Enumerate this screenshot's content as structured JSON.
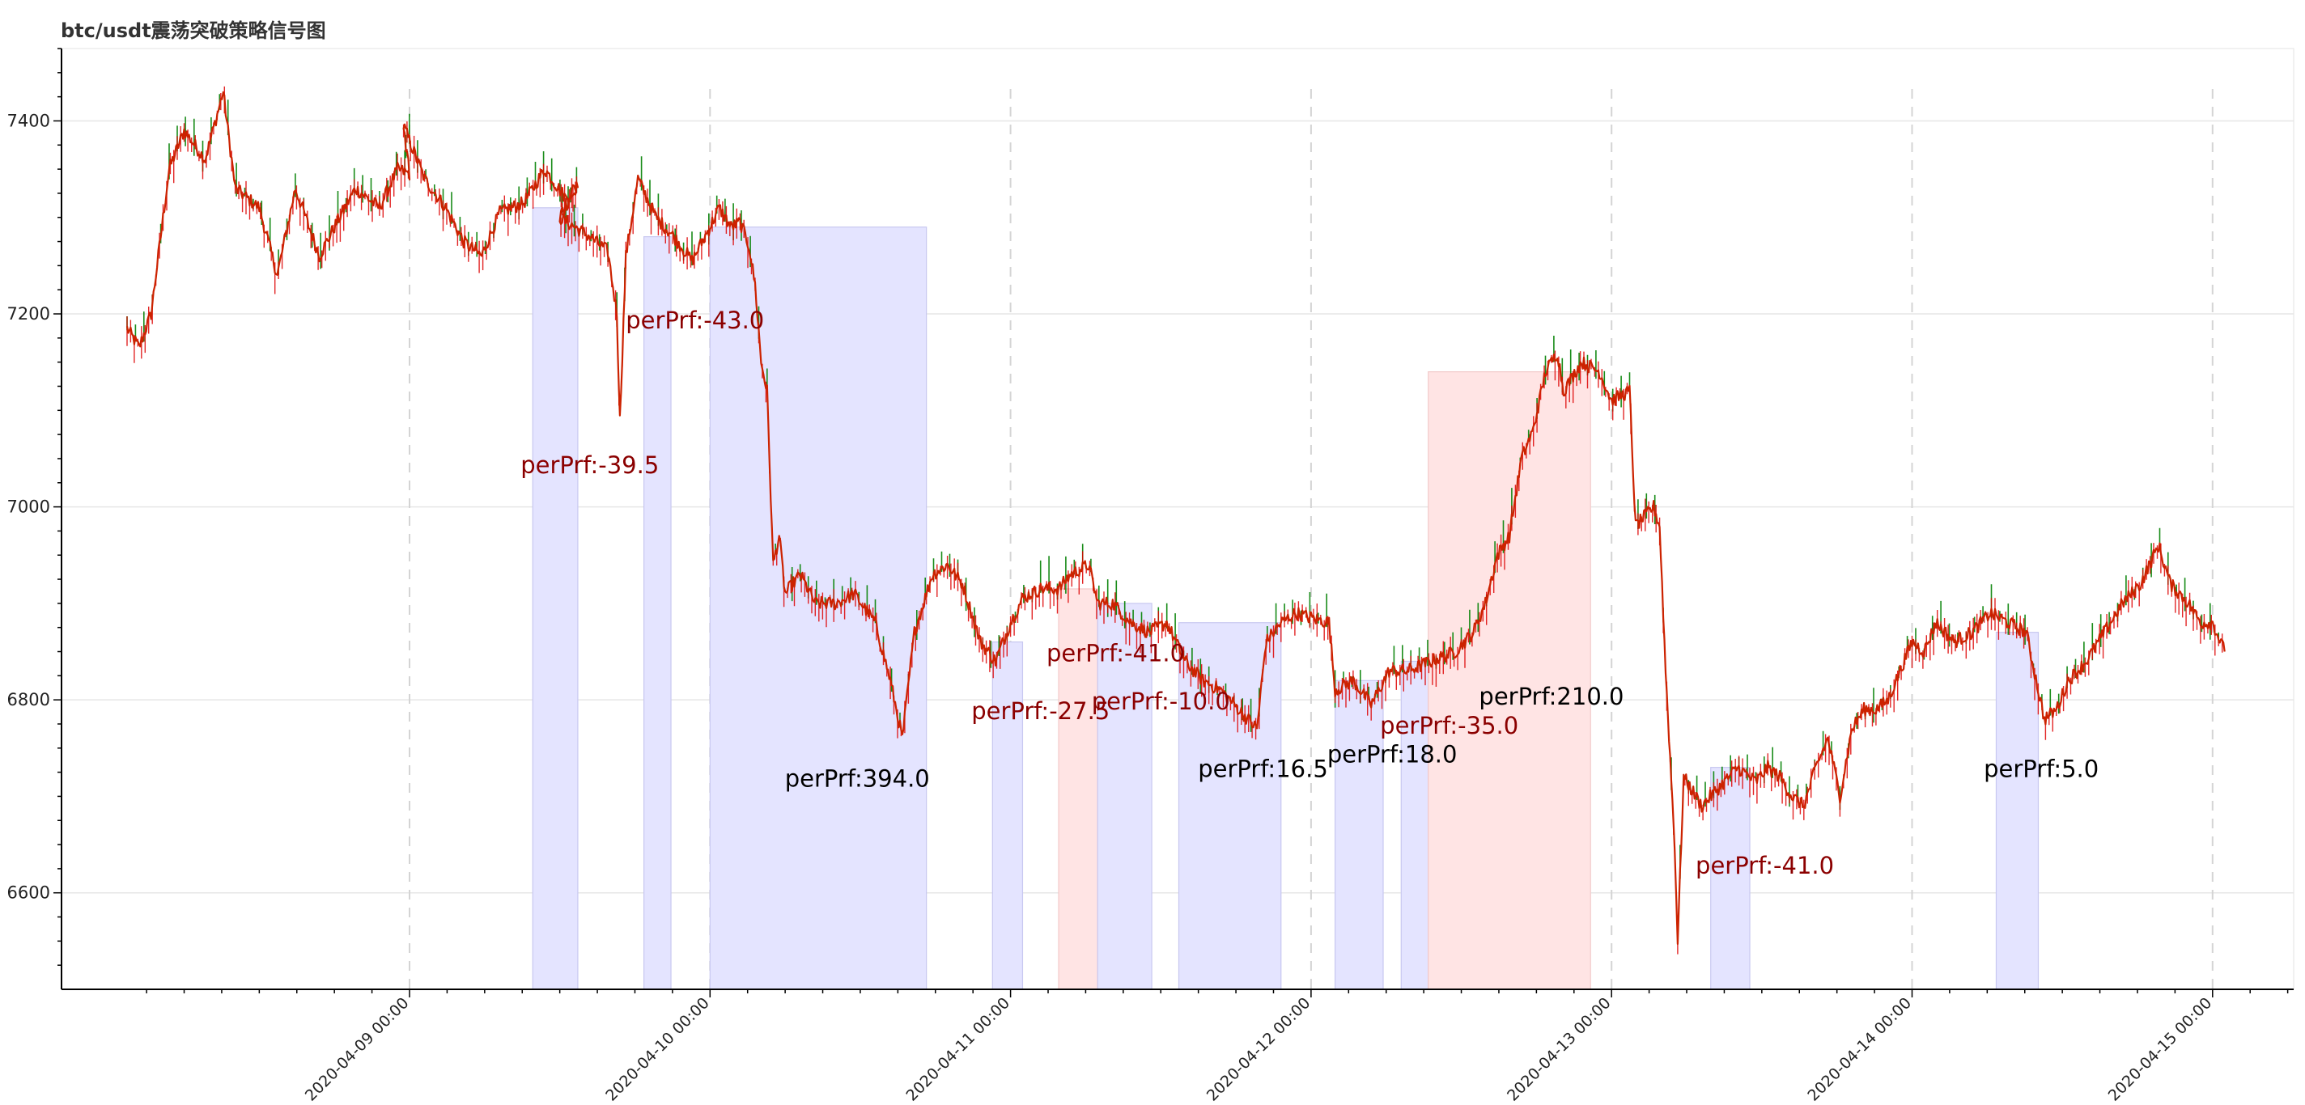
{
  "chart_data": {
    "type": "candlestick",
    "title": "btc/usdt震荡突破策略信号图",
    "ylim": [
      6500,
      7475
    ],
    "y_ticks": [
      6600,
      6800,
      7000,
      7200,
      7400
    ],
    "y_tick_labels": [
      "6600",
      "6800",
      "7000",
      "7200",
      "7400"
    ],
    "x_range_days": [
      -0.85,
      6.26
    ],
    "x_ticks": [
      0,
      1,
      2,
      3,
      4,
      5,
      6
    ],
    "x_tick_labels": [
      "2020-04-09 00:00",
      "2020-04-10 00:00",
      "2020-04-11 00:00",
      "2020-04-12 00:00",
      "2020-04-13 00:00",
      "2020-04-14 00:00",
      "2020-04-15 00:00"
    ],
    "price_keypoints": [
      [
        -0.94,
        7185
      ],
      [
        -0.9,
        7165
      ],
      [
        -0.86,
        7200
      ],
      [
        -0.8,
        7350
      ],
      [
        -0.75,
        7390
      ],
      [
        -0.68,
        7360
      ],
      [
        -0.62,
        7430
      ],
      [
        -0.58,
        7330
      ],
      [
        -0.5,
        7310
      ],
      [
        -0.44,
        7240
      ],
      [
        -0.38,
        7330
      ],
      [
        -0.3,
        7260
      ],
      [
        -0.25,
        7290
      ],
      [
        -0.18,
        7330
      ],
      [
        -0.1,
        7310
      ],
      [
        -0.04,
        7350
      ],
      [
        0.0,
        7345
      ],
      [
        -0.02,
        7395
      ],
      [
        0.05,
        7340
      ],
      [
        0.12,
        7310
      ],
      [
        0.18,
        7275
      ],
      [
        0.24,
        7260
      ],
      [
        0.3,
        7305
      ],
      [
        0.38,
        7315
      ],
      [
        0.45,
        7350
      ],
      [
        0.52,
        7320
      ],
      [
        0.56,
        7335
      ],
      [
        0.5,
        7300
      ],
      [
        0.6,
        7280
      ],
      [
        0.66,
        7265
      ],
      [
        0.69,
        7200
      ],
      [
        0.7,
        7090
      ],
      [
        0.72,
        7260
      ],
      [
        0.76,
        7340
      ],
      [
        0.82,
        7300
      ],
      [
        0.88,
        7280
      ],
      [
        0.94,
        7255
      ],
      [
        1.0,
        7290
      ],
      [
        1.03,
        7310
      ],
      [
        1.07,
        7290
      ],
      [
        1.1,
        7295
      ],
      [
        1.13,
        7270
      ],
      [
        1.15,
        7230
      ],
      [
        1.17,
        7150
      ],
      [
        1.19,
        7120
      ],
      [
        1.21,
        6940
      ],
      [
        1.23,
        6970
      ],
      [
        1.25,
        6910
      ],
      [
        1.3,
        6930
      ],
      [
        1.35,
        6900
      ],
      [
        1.42,
        6900
      ],
      [
        1.48,
        6910
      ],
      [
        1.55,
        6880
      ],
      [
        1.6,
        6820
      ],
      [
        1.64,
        6760
      ],
      [
        1.68,
        6870
      ],
      [
        1.74,
        6930
      ],
      [
        1.79,
        6940
      ],
      [
        1.84,
        6920
      ],
      [
        1.9,
        6860
      ],
      [
        1.95,
        6840
      ],
      [
        2.0,
        6880
      ],
      [
        2.04,
        6905
      ],
      [
        2.1,
        6915
      ],
      [
        2.16,
        6915
      ],
      [
        2.2,
        6930
      ],
      [
        2.26,
        6940
      ],
      [
        2.29,
        6900
      ],
      [
        2.34,
        6900
      ],
      [
        2.4,
        6880
      ],
      [
        2.46,
        6870
      ],
      [
        2.52,
        6880
      ],
      [
        2.58,
        6840
      ],
      [
        2.64,
        6820
      ],
      [
        2.7,
        6810
      ],
      [
        2.76,
        6790
      ],
      [
        2.82,
        6770
      ],
      [
        2.85,
        6860
      ],
      [
        2.9,
        6880
      ],
      [
        2.95,
        6890
      ],
      [
        3.0,
        6885
      ],
      [
        3.06,
        6880
      ],
      [
        3.08,
        6810
      ],
      [
        3.14,
        6820
      ],
      [
        3.2,
        6795
      ],
      [
        3.26,
        6830
      ],
      [
        3.32,
        6830
      ],
      [
        3.4,
        6840
      ],
      [
        3.48,
        6850
      ],
      [
        3.54,
        6870
      ],
      [
        3.58,
        6900
      ],
      [
        3.62,
        6950
      ],
      [
        3.66,
        6970
      ],
      [
        3.7,
        7050
      ],
      [
        3.74,
        7080
      ],
      [
        3.78,
        7140
      ],
      [
        3.82,
        7160
      ],
      [
        3.84,
        7120
      ],
      [
        3.9,
        7150
      ],
      [
        3.96,
        7140
      ],
      [
        4.0,
        7110
      ],
      [
        4.06,
        7120
      ],
      [
        4.08,
        6980
      ],
      [
        4.14,
        7000
      ],
      [
        4.16,
        6980
      ],
      [
        4.18,
        6830
      ],
      [
        4.21,
        6650
      ],
      [
        4.22,
        6550
      ],
      [
        4.24,
        6720
      ],
      [
        4.3,
        6690
      ],
      [
        4.36,
        6710
      ],
      [
        4.42,
        6730
      ],
      [
        4.48,
        6715
      ],
      [
        4.52,
        6730
      ],
      [
        4.56,
        6720
      ],
      [
        4.6,
        6700
      ],
      [
        4.64,
        6690
      ],
      [
        4.68,
        6730
      ],
      [
        4.72,
        6760
      ],
      [
        4.76,
        6700
      ],
      [
        4.8,
        6770
      ],
      [
        4.84,
        6790
      ],
      [
        4.88,
        6790
      ],
      [
        4.92,
        6800
      ],
      [
        4.96,
        6830
      ],
      [
        5.0,
        6860
      ],
      [
        5.04,
        6850
      ],
      [
        5.08,
        6880
      ],
      [
        5.14,
        6860
      ],
      [
        5.2,
        6870
      ],
      [
        5.26,
        6890
      ],
      [
        5.32,
        6880
      ],
      [
        5.38,
        6870
      ],
      [
        5.44,
        6780
      ],
      [
        5.48,
        6790
      ],
      [
        5.52,
        6820
      ],
      [
        5.58,
        6840
      ],
      [
        5.64,
        6870
      ],
      [
        5.7,
        6900
      ],
      [
        5.76,
        6920
      ],
      [
        5.82,
        6960
      ],
      [
        5.86,
        6920
      ],
      [
        5.92,
        6900
      ],
      [
        5.96,
        6880
      ],
      [
        6.0,
        6880
      ],
      [
        6.04,
        6850
      ]
    ],
    "trades": [
      {
        "x0": 0.41,
        "x1": 0.56,
        "color": "blue",
        "y_top": 7310,
        "label": "perPrf:-39.5",
        "label_color": "#8b0000",
        "label_x": 0.6,
        "label_y": 7035
      },
      {
        "x0": 0.78,
        "x1": 0.87,
        "color": "blue",
        "y_top": 7280,
        "label": "perPrf:-43.0",
        "label_color": "#8b0000",
        "label_x": 0.95,
        "label_y": 7185
      },
      {
        "x0": 1.0,
        "x1": 1.72,
        "color": "blue",
        "y_top": 7290,
        "label": "perPrf:394.0",
        "label_color": "#000000",
        "label_x": 1.49,
        "label_y": 6710
      },
      {
        "x0": 1.94,
        "x1": 2.04,
        "color": "blue",
        "y_top": 6860,
        "label": "perPrf:-27.5",
        "label_color": "#8b0000",
        "label_x": 2.1,
        "label_y": 6780
      },
      {
        "x0": 2.16,
        "x1": 2.29,
        "color": "red",
        "y_top": 6915,
        "label": "perPrf:-41.0",
        "label_color": "#8b0000",
        "label_x": 2.35,
        "label_y": 6840
      },
      {
        "x0": 2.29,
        "x1": 2.47,
        "color": "blue",
        "y_top": 6900,
        "label": "perPrf:-10.0",
        "label_color": "#8b0000",
        "label_x": 2.5,
        "label_y": 6790
      },
      {
        "x0": 2.56,
        "x1": 2.9,
        "color": "blue",
        "y_top": 6880,
        "label": "perPrf:16.5",
        "label_color": "#000000",
        "label_x": 2.84,
        "label_y": 6720
      },
      {
        "x0": 3.08,
        "x1": 3.24,
        "color": "blue",
        "y_top": 6820,
        "label": "perPrf:18.0",
        "label_color": "#000000",
        "label_x": 3.27,
        "label_y": 6735
      },
      {
        "x0": 3.3,
        "x1": 3.39,
        "color": "blue",
        "y_top": 6840,
        "label": "perPrf:-35.0",
        "label_color": "#8b0000",
        "label_x": 3.46,
        "label_y": 6765
      },
      {
        "x0": 3.39,
        "x1": 3.93,
        "color": "red",
        "y_top": 7140,
        "label": "perPrf:210.0",
        "label_color": "#000000",
        "label_x": 3.8,
        "label_y": 6795
      },
      {
        "x0": 4.33,
        "x1": 4.46,
        "color": "blue",
        "y_top": 6730,
        "label": "perPrf:-41.0",
        "label_color": "#8b0000",
        "label_x": 4.51,
        "label_y": 6620
      },
      {
        "x0": 5.28,
        "x1": 5.42,
        "color": "blue",
        "y_top": 6870,
        "label": "perPrf:5.0",
        "label_color": "#000000",
        "label_x": 5.43,
        "label_y": 6720
      }
    ],
    "colors": {
      "up": "#008000",
      "down": "#dd0000",
      "line": "#cc2200",
      "blue_fill": "#e4e4ff",
      "blue_stroke": "#c8c8f0",
      "red_fill": "#ffe4e4",
      "red_stroke": "#f2caca",
      "grid": "#e6e6e6",
      "vgrid": "#d4d4d4",
      "axis": "#000000"
    }
  }
}
